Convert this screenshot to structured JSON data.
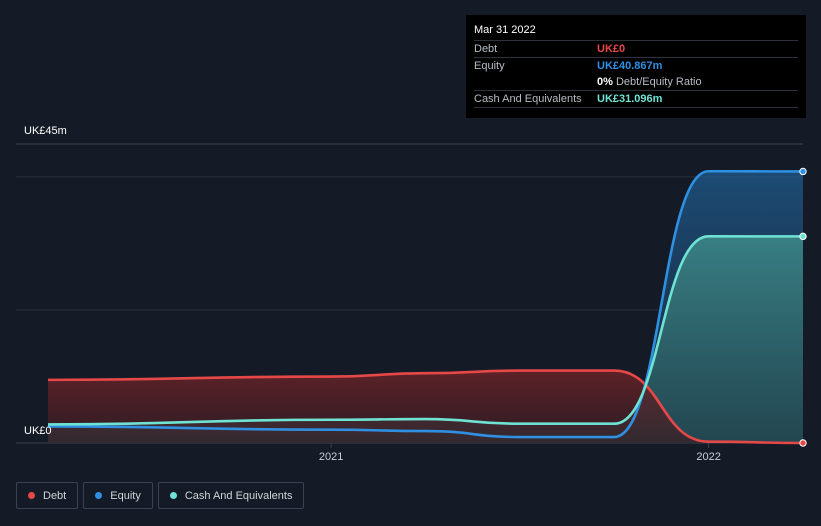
{
  "tooltip": {
    "date": "Mar 31 2022",
    "debt_label": "Debt",
    "debt_value": "UK£0",
    "equity_label": "Equity",
    "equity_value": "UK£40.867m",
    "ratio_value": "0%",
    "ratio_label": "Debt/Equity Ratio",
    "cash_label": "Cash And Equivalents",
    "cash_value": "UK£31.096m"
  },
  "legend": [
    {
      "label": "Debt",
      "color": "#e64848"
    },
    {
      "label": "Equity",
      "color": "#2f8fe0"
    },
    {
      "label": "Cash And Equivalents",
      "color": "#6fe3d3"
    }
  ],
  "chart_data": {
    "type": "area",
    "y_axis_labels": [
      "UK£45m",
      "UK£0"
    ],
    "ylim": [
      0,
      45
    ],
    "xlim": [
      2020.25,
      2022.25
    ],
    "x_ticks": [
      {
        "value": 2021,
        "label": "2021"
      },
      {
        "value": 2022,
        "label": "2022"
      }
    ],
    "grid": true,
    "legend_position": "bottom-left",
    "series": [
      {
        "name": "Debt",
        "color": "#e64848",
        "points": [
          [
            2020.25,
            9.5
          ],
          [
            2021.0,
            10.0
          ],
          [
            2021.25,
            10.5
          ],
          [
            2021.5,
            10.9
          ],
          [
            2021.75,
            10.9
          ],
          [
            2022.0,
            0.2
          ],
          [
            2022.25,
            0.0
          ]
        ]
      },
      {
        "name": "Equity",
        "color": "#2f8fe0",
        "points": [
          [
            2020.25,
            2.5
          ],
          [
            2021.0,
            2.0
          ],
          [
            2021.25,
            1.8
          ],
          [
            2021.5,
            0.9
          ],
          [
            2021.75,
            0.9
          ],
          [
            2022.0,
            40.9
          ],
          [
            2022.25,
            40.867
          ]
        ]
      },
      {
        "name": "Cash And Equivalents",
        "color": "#6fe3d3",
        "points": [
          [
            2020.25,
            2.8
          ],
          [
            2021.0,
            3.5
          ],
          [
            2021.25,
            3.6
          ],
          [
            2021.5,
            2.9
          ],
          [
            2021.75,
            2.9
          ],
          [
            2022.0,
            31.1
          ],
          [
            2022.25,
            31.096
          ]
        ]
      }
    ]
  }
}
